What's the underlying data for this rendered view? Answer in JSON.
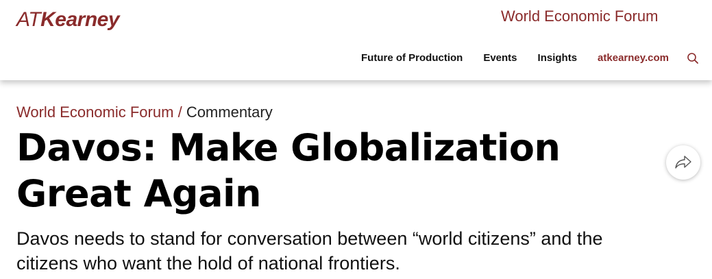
{
  "header": {
    "logo": {
      "prefix": "AT",
      "name": "Kearney"
    },
    "section_link": "World Economic Forum",
    "nav": [
      {
        "label": "Future of Production"
      },
      {
        "label": "Events"
      },
      {
        "label": "Insights"
      },
      {
        "label": "atkearney.com"
      }
    ],
    "search_icon": "search-icon"
  },
  "breadcrumb": {
    "section": "World Economic Forum",
    "separator": "/",
    "current": "Commentary"
  },
  "article": {
    "title": "Davos: Make Globalization Great Again",
    "subtitle": "Davos needs to stand for conversation between “world citizens” and the citizens who want the hold of national frontiers."
  },
  "share": {
    "icon": "share-icon"
  },
  "colors": {
    "brand": "#8a2b2b",
    "text": "#000000",
    "background": "#ffffff"
  }
}
